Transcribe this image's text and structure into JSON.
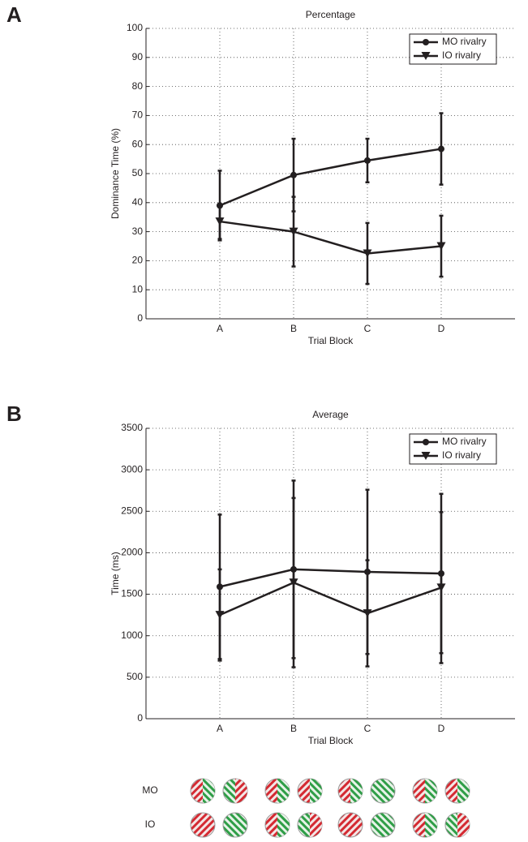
{
  "panels": [
    "A",
    "B"
  ],
  "chart_data": [
    {
      "type": "line",
      "title": "Percentage",
      "x_label": "Trial Block",
      "y_label": "Dominance Time (%)",
      "categories": [
        "A",
        "B",
        "C",
        "D"
      ],
      "series": [
        {
          "name": "MO rivalry",
          "color": "#231f20",
          "marker": "circle",
          "values": [
            39,
            49.5,
            54.5,
            58.5
          ],
          "errors": [
            12,
            12.5,
            7.5,
            12.3
          ]
        },
        {
          "name": "IO rivalry",
          "color": "#231f20",
          "marker": "triangle-down",
          "values": [
            33.5,
            30,
            22.5,
            25
          ],
          "errors": [
            6,
            12,
            10.5,
            10.5
          ]
        }
      ],
      "ylim": [
        0,
        100
      ],
      "yticks": [
        0,
        10,
        20,
        30,
        40,
        50,
        60,
        70,
        80,
        90,
        100
      ],
      "grid": true,
      "legend": "upper-right"
    },
    {
      "type": "line",
      "title": "Average",
      "x_label": "Trial Block",
      "y_label": "Time (ms)",
      "categories": [
        "A",
        "B",
        "C",
        "D"
      ],
      "series": [
        {
          "name": "MO rivalry",
          "color": "#231f20",
          "marker": "circle",
          "values": [
            1590,
            1800,
            1770,
            1750
          ],
          "errors": [
            870,
            1070,
            990,
            960
          ]
        },
        {
          "name": "IO rivalry",
          "color": "#231f20",
          "marker": "triangle-down",
          "values": [
            1250,
            1640,
            1270,
            1580
          ],
          "errors": [
            550,
            1020,
            640,
            910
          ]
        }
      ],
      "ylim": [
        0,
        3500
      ],
      "yticks": [
        0,
        500,
        1000,
        1500,
        2000,
        2500,
        3000,
        3500
      ],
      "grid": true,
      "legend": "upper-right"
    }
  ],
  "stimuli": {
    "rows": [
      "MO",
      "IO"
    ]
  }
}
